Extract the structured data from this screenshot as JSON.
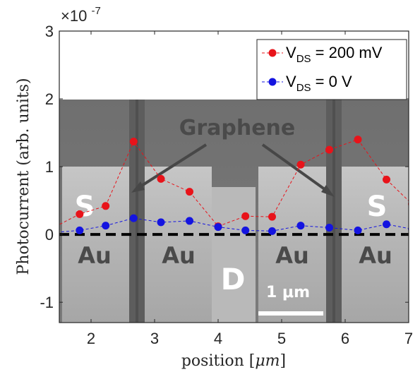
{
  "chart_data": {
    "type": "line",
    "xlabel": "position [",
    "xlabel_unit": "μm",
    "xlabel_close": "]",
    "ylabel": "Photocurrent (arb. units)",
    "y_exponent": "×10",
    "y_exponent_power": "-7",
    "xlim": [
      1.5,
      7
    ],
    "ylim": [
      -1.3,
      3
    ],
    "x_ticks": [
      "2",
      "3",
      "4",
      "5",
      "6",
      "7"
    ],
    "y_ticks": [
      "-1",
      "0",
      "1",
      "2",
      "3"
    ],
    "x_tick_values": [
      2,
      3,
      4,
      5,
      6,
      7
    ],
    "y_tick_values": [
      -1,
      0,
      1,
      2,
      3
    ],
    "legend_position": "top-right",
    "series": [
      {
        "name": "V_DS = 200 mV",
        "legend_main": "V",
        "legend_sub": "DS",
        "legend_rest": " = 200 mV",
        "color": "#e8131a",
        "x": [
          1.3,
          1.82,
          2.23,
          2.67,
          3.1,
          3.55,
          4.0,
          4.43,
          4.85,
          5.3,
          5.75,
          6.2,
          6.65,
          7.05
        ],
        "y": [
          0.05,
          0.3,
          0.42,
          1.37,
          0.82,
          0.63,
          0.12,
          0.27,
          0.26,
          1.03,
          1.25,
          1.4,
          0.81,
          0.45
        ]
      },
      {
        "name": "V_DS = 0 V",
        "legend_main": "V",
        "legend_sub": "DS",
        "legend_rest": " = 0 V",
        "color": "#1414e0",
        "x": [
          1.3,
          1.82,
          2.23,
          2.67,
          3.1,
          3.55,
          4.0,
          4.43,
          4.85,
          5.3,
          5.75,
          6.2,
          6.65,
          7.05
        ],
        "y": [
          0.02,
          0.06,
          0.13,
          0.24,
          0.18,
          0.2,
          0.11,
          0.06,
          0.05,
          0.13,
          0.1,
          0.06,
          0.15,
          0.08
        ]
      }
    ],
    "zero_line": {
      "y": 0,
      "style": "dashed",
      "color": "#000000"
    },
    "overlay": {
      "graphene_label": "Graphene",
      "source_label": "S",
      "drain_label": "D",
      "gold_label": "Au",
      "scale_bar_label": "1 μm"
    }
  }
}
